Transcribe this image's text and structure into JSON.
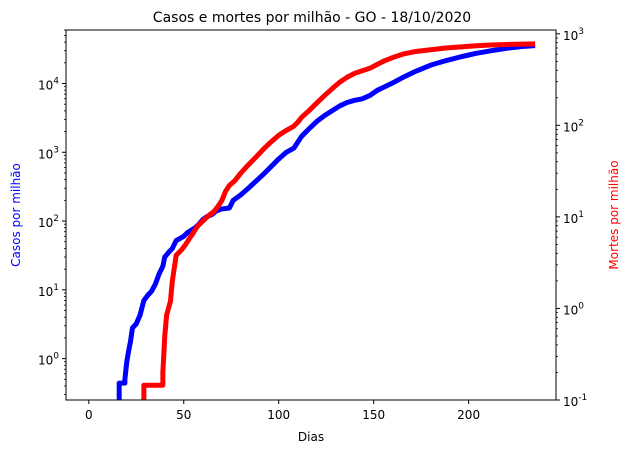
{
  "chart_data": {
    "type": "line",
    "title": "Casos e mortes por milhão - GO - 18/10/2020",
    "xlabel": "Dias",
    "ylabel_left": "Casos por milhão",
    "ylabel_right": "Mortes por milhão",
    "xlim": [
      -12,
      246
    ],
    "ylim_left": [
      0.25,
      60000
    ],
    "ylim_right": [
      0.1,
      1100
    ],
    "yscale_left": "log",
    "yscale_right": "log",
    "grid": false,
    "x_ticks": [
      0,
      50,
      100,
      150,
      200
    ],
    "x_tick_labels": [
      "0",
      "50",
      "100",
      "150",
      "200"
    ],
    "left_ticks": [
      1,
      10,
      100,
      1000,
      10000
    ],
    "left_tick_labels": [
      "10^0",
      "10^1",
      "10^2",
      "10^3",
      "10^4"
    ],
    "right_ticks": [
      0.1,
      1,
      10,
      100,
      1000
    ],
    "right_tick_labels": [
      "10^-1",
      "10^0",
      "10^1",
      "10^2",
      "10^3"
    ],
    "series": [
      {
        "name": "Casos por milhão",
        "axis": "left",
        "color": "#0000ff",
        "points": [
          [
            16,
            0.25
          ],
          [
            16,
            0.44
          ],
          [
            19,
            0.44
          ],
          [
            19,
            0.5
          ],
          [
            20,
            0.9
          ],
          [
            21,
            1.3
          ],
          [
            22,
            1.8
          ],
          [
            23,
            2.8
          ],
          [
            25,
            3.2
          ],
          [
            27,
            4.3
          ],
          [
            29,
            7
          ],
          [
            31,
            8.3
          ],
          [
            33,
            9.5
          ],
          [
            35,
            12
          ],
          [
            37,
            17
          ],
          [
            39,
            22
          ],
          [
            40,
            30
          ],
          [
            42,
            35
          ],
          [
            44,
            40
          ],
          [
            46,
            52
          ],
          [
            50,
            60
          ],
          [
            52,
            68
          ],
          [
            56,
            80
          ],
          [
            58,
            90
          ],
          [
            60,
            105
          ],
          [
            62,
            115
          ],
          [
            65,
            125
          ],
          [
            67,
            140
          ],
          [
            70,
            150
          ],
          [
            74,
            155
          ],
          [
            75,
            175
          ],
          [
            76,
            200
          ],
          [
            80,
            240
          ],
          [
            84,
            300
          ],
          [
            88,
            380
          ],
          [
            92,
            480
          ],
          [
            96,
            620
          ],
          [
            100,
            800
          ],
          [
            104,
            1000
          ],
          [
            108,
            1150
          ],
          [
            110,
            1400
          ],
          [
            112,
            1700
          ],
          [
            116,
            2200
          ],
          [
            120,
            2800
          ],
          [
            124,
            3400
          ],
          [
            128,
            4000
          ],
          [
            132,
            4700
          ],
          [
            136,
            5300
          ],
          [
            140,
            5700
          ],
          [
            144,
            6000
          ],
          [
            148,
            6700
          ],
          [
            152,
            8000
          ],
          [
            156,
            9000
          ],
          [
            160,
            10200
          ],
          [
            166,
            12500
          ],
          [
            172,
            15000
          ],
          [
            180,
            18500
          ],
          [
            188,
            21500
          ],
          [
            196,
            24500
          ],
          [
            204,
            27500
          ],
          [
            212,
            30000
          ],
          [
            220,
            32500
          ],
          [
            228,
            34500
          ],
          [
            235,
            35500
          ]
        ]
      },
      {
        "name": "Mortes por milhão",
        "axis": "right",
        "color": "#ff0000",
        "points": [
          [
            29,
            0.1
          ],
          [
            29,
            0.145
          ],
          [
            39,
            0.145
          ],
          [
            39,
            0.2
          ],
          [
            40,
            0.5
          ],
          [
            41,
            0.85
          ],
          [
            43,
            1.2
          ],
          [
            44,
            2.0
          ],
          [
            46,
            3.8
          ],
          [
            49,
            4.4
          ],
          [
            51,
            5.0
          ],
          [
            53,
            5.8
          ],
          [
            55,
            6.7
          ],
          [
            57,
            7.8
          ],
          [
            59,
            8.6
          ],
          [
            61,
            9.4
          ],
          [
            63,
            10.3
          ],
          [
            66,
            11.5
          ],
          [
            68,
            13
          ],
          [
            70,
            15
          ],
          [
            72,
            19
          ],
          [
            74,
            22
          ],
          [
            77,
            25
          ],
          [
            80,
            30
          ],
          [
            84,
            37
          ],
          [
            88,
            45
          ],
          [
            92,
            55
          ],
          [
            96,
            66
          ],
          [
            100,
            78
          ],
          [
            104,
            88
          ],
          [
            108,
            98
          ],
          [
            110,
            108
          ],
          [
            112,
            122
          ],
          [
            116,
            145
          ],
          [
            120,
            175
          ],
          [
            124,
            210
          ],
          [
            128,
            250
          ],
          [
            132,
            295
          ],
          [
            136,
            335
          ],
          [
            140,
            370
          ],
          [
            144,
            395
          ],
          [
            148,
            420
          ],
          [
            152,
            465
          ],
          [
            156,
            510
          ],
          [
            160,
            550
          ],
          [
            166,
            605
          ],
          [
            172,
            640
          ],
          [
            180,
            670
          ],
          [
            188,
            700
          ],
          [
            196,
            720
          ],
          [
            204,
            740
          ],
          [
            212,
            755
          ],
          [
            220,
            765
          ],
          [
            228,
            770
          ],
          [
            235,
            775
          ]
        ]
      }
    ]
  }
}
